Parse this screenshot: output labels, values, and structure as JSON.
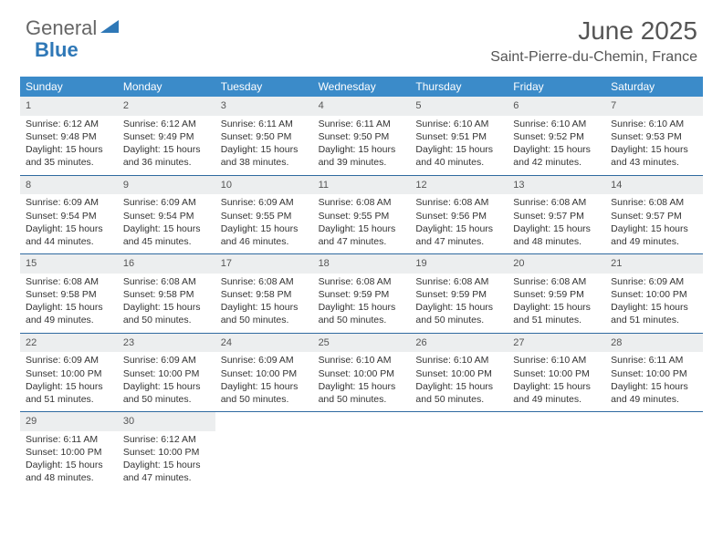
{
  "brand": {
    "word1": "General",
    "word2": "Blue"
  },
  "title": "June 2025",
  "location": "Saint-Pierre-du-Chemin, France",
  "colors": {
    "header_bar": "#3b8bc9",
    "week_border": "#2f6aa0",
    "daynum_bg": "#eceeef",
    "text": "#333333",
    "title_text": "#555555",
    "logo_accent": "#2f78b7",
    "background": "#ffffff"
  },
  "typography": {
    "title_fontsize": 28,
    "location_fontsize": 16,
    "dow_fontsize": 12,
    "body_fontsize": 10.5
  },
  "dow": [
    "Sunday",
    "Monday",
    "Tuesday",
    "Wednesday",
    "Thursday",
    "Friday",
    "Saturday"
  ],
  "weeks": [
    [
      {
        "n": "1",
        "sr": "6:12 AM",
        "ss": "9:48 PM",
        "dl": "15 hours and 35 minutes."
      },
      {
        "n": "2",
        "sr": "6:12 AM",
        "ss": "9:49 PM",
        "dl": "15 hours and 36 minutes."
      },
      {
        "n": "3",
        "sr": "6:11 AM",
        "ss": "9:50 PM",
        "dl": "15 hours and 38 minutes."
      },
      {
        "n": "4",
        "sr": "6:11 AM",
        "ss": "9:50 PM",
        "dl": "15 hours and 39 minutes."
      },
      {
        "n": "5",
        "sr": "6:10 AM",
        "ss": "9:51 PM",
        "dl": "15 hours and 40 minutes."
      },
      {
        "n": "6",
        "sr": "6:10 AM",
        "ss": "9:52 PM",
        "dl": "15 hours and 42 minutes."
      },
      {
        "n": "7",
        "sr": "6:10 AM",
        "ss": "9:53 PM",
        "dl": "15 hours and 43 minutes."
      }
    ],
    [
      {
        "n": "8",
        "sr": "6:09 AM",
        "ss": "9:54 PM",
        "dl": "15 hours and 44 minutes."
      },
      {
        "n": "9",
        "sr": "6:09 AM",
        "ss": "9:54 PM",
        "dl": "15 hours and 45 minutes."
      },
      {
        "n": "10",
        "sr": "6:09 AM",
        "ss": "9:55 PM",
        "dl": "15 hours and 46 minutes."
      },
      {
        "n": "11",
        "sr": "6:08 AM",
        "ss": "9:55 PM",
        "dl": "15 hours and 47 minutes."
      },
      {
        "n": "12",
        "sr": "6:08 AM",
        "ss": "9:56 PM",
        "dl": "15 hours and 47 minutes."
      },
      {
        "n": "13",
        "sr": "6:08 AM",
        "ss": "9:57 PM",
        "dl": "15 hours and 48 minutes."
      },
      {
        "n": "14",
        "sr": "6:08 AM",
        "ss": "9:57 PM",
        "dl": "15 hours and 49 minutes."
      }
    ],
    [
      {
        "n": "15",
        "sr": "6:08 AM",
        "ss": "9:58 PM",
        "dl": "15 hours and 49 minutes."
      },
      {
        "n": "16",
        "sr": "6:08 AM",
        "ss": "9:58 PM",
        "dl": "15 hours and 50 minutes."
      },
      {
        "n": "17",
        "sr": "6:08 AM",
        "ss": "9:58 PM",
        "dl": "15 hours and 50 minutes."
      },
      {
        "n": "18",
        "sr": "6:08 AM",
        "ss": "9:59 PM",
        "dl": "15 hours and 50 minutes."
      },
      {
        "n": "19",
        "sr": "6:08 AM",
        "ss": "9:59 PM",
        "dl": "15 hours and 50 minutes."
      },
      {
        "n": "20",
        "sr": "6:08 AM",
        "ss": "9:59 PM",
        "dl": "15 hours and 51 minutes."
      },
      {
        "n": "21",
        "sr": "6:09 AM",
        "ss": "10:00 PM",
        "dl": "15 hours and 51 minutes."
      }
    ],
    [
      {
        "n": "22",
        "sr": "6:09 AM",
        "ss": "10:00 PM",
        "dl": "15 hours and 51 minutes."
      },
      {
        "n": "23",
        "sr": "6:09 AM",
        "ss": "10:00 PM",
        "dl": "15 hours and 50 minutes."
      },
      {
        "n": "24",
        "sr": "6:09 AM",
        "ss": "10:00 PM",
        "dl": "15 hours and 50 minutes."
      },
      {
        "n": "25",
        "sr": "6:10 AM",
        "ss": "10:00 PM",
        "dl": "15 hours and 50 minutes."
      },
      {
        "n": "26",
        "sr": "6:10 AM",
        "ss": "10:00 PM",
        "dl": "15 hours and 50 minutes."
      },
      {
        "n": "27",
        "sr": "6:10 AM",
        "ss": "10:00 PM",
        "dl": "15 hours and 49 minutes."
      },
      {
        "n": "28",
        "sr": "6:11 AM",
        "ss": "10:00 PM",
        "dl": "15 hours and 49 minutes."
      }
    ],
    [
      {
        "n": "29",
        "sr": "6:11 AM",
        "ss": "10:00 PM",
        "dl": "15 hours and 48 minutes."
      },
      {
        "n": "30",
        "sr": "6:12 AM",
        "ss": "10:00 PM",
        "dl": "15 hours and 47 minutes."
      },
      null,
      null,
      null,
      null,
      null
    ]
  ],
  "labels": {
    "sunrise": "Sunrise: ",
    "sunset": "Sunset: ",
    "daylight": "Daylight: "
  }
}
